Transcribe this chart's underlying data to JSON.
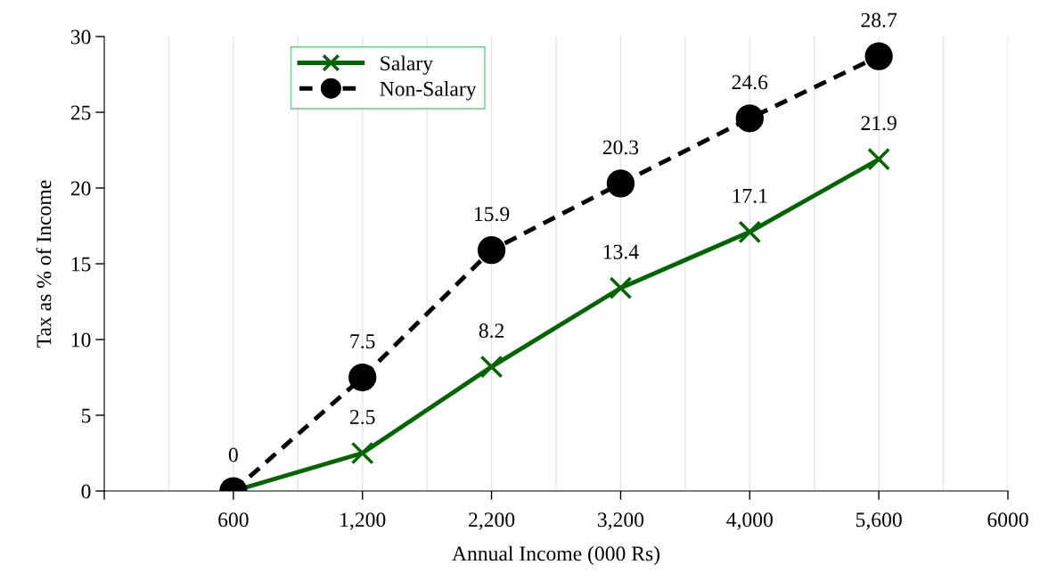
{
  "chart_data": {
    "type": "line",
    "xlabel": "Annual Income (000 Rs)",
    "ylabel": "Tax as % of Income",
    "categories": [
      null,
      "600",
      "1,200",
      "2,200",
      "3,200",
      "4,000",
      "5,600",
      "6000"
    ],
    "series": [
      {
        "name": "Salary",
        "color": "#006600",
        "marker": "cross",
        "line_style": "solid",
        "values": [
          null,
          0,
          2.5,
          8.2,
          13.4,
          17.1,
          21.9,
          null
        ],
        "value_labels": [
          null,
          null,
          "2.5",
          "8.2",
          "13.4",
          "17.1",
          "21.9",
          null
        ]
      },
      {
        "name": "Non-Salary",
        "color": "#000000",
        "marker": "circle",
        "line_style": "dashed",
        "values": [
          null,
          0,
          7.5,
          15.9,
          20.3,
          24.6,
          28.7,
          null
        ],
        "value_labels": [
          null,
          "0",
          "7.5",
          "15.9",
          "20.3",
          "24.6",
          "28.7",
          null
        ]
      }
    ],
    "ylim": [
      0,
      30
    ],
    "yticks": [
      0,
      5,
      10,
      15,
      20,
      25,
      30
    ],
    "grid": "x",
    "legend": "top left"
  }
}
